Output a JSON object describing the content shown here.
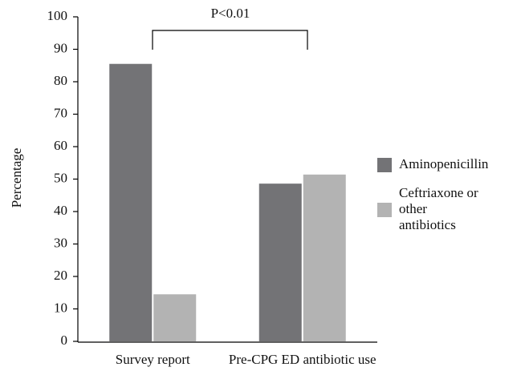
{
  "chart_data": {
    "type": "bar",
    "annotation": "P<0.01",
    "ylabel": "Percentage",
    "categories": [
      "Survey report",
      "Pre-CPG ED antibiotic use"
    ],
    "series": [
      {
        "name": "Aminopenicillin",
        "color": "#737376",
        "values": [
          85.5,
          48.6
        ]
      },
      {
        "name": "Ceftriaxone or other antibiotics",
        "color": "#b3b3b3",
        "values": [
          14.5,
          51.4
        ]
      }
    ],
    "ylim": [
      0,
      100
    ],
    "yticks": [
      0,
      10,
      20,
      30,
      40,
      50,
      60,
      70,
      80,
      90,
      100
    ],
    "grid": false,
    "legend": "right"
  }
}
